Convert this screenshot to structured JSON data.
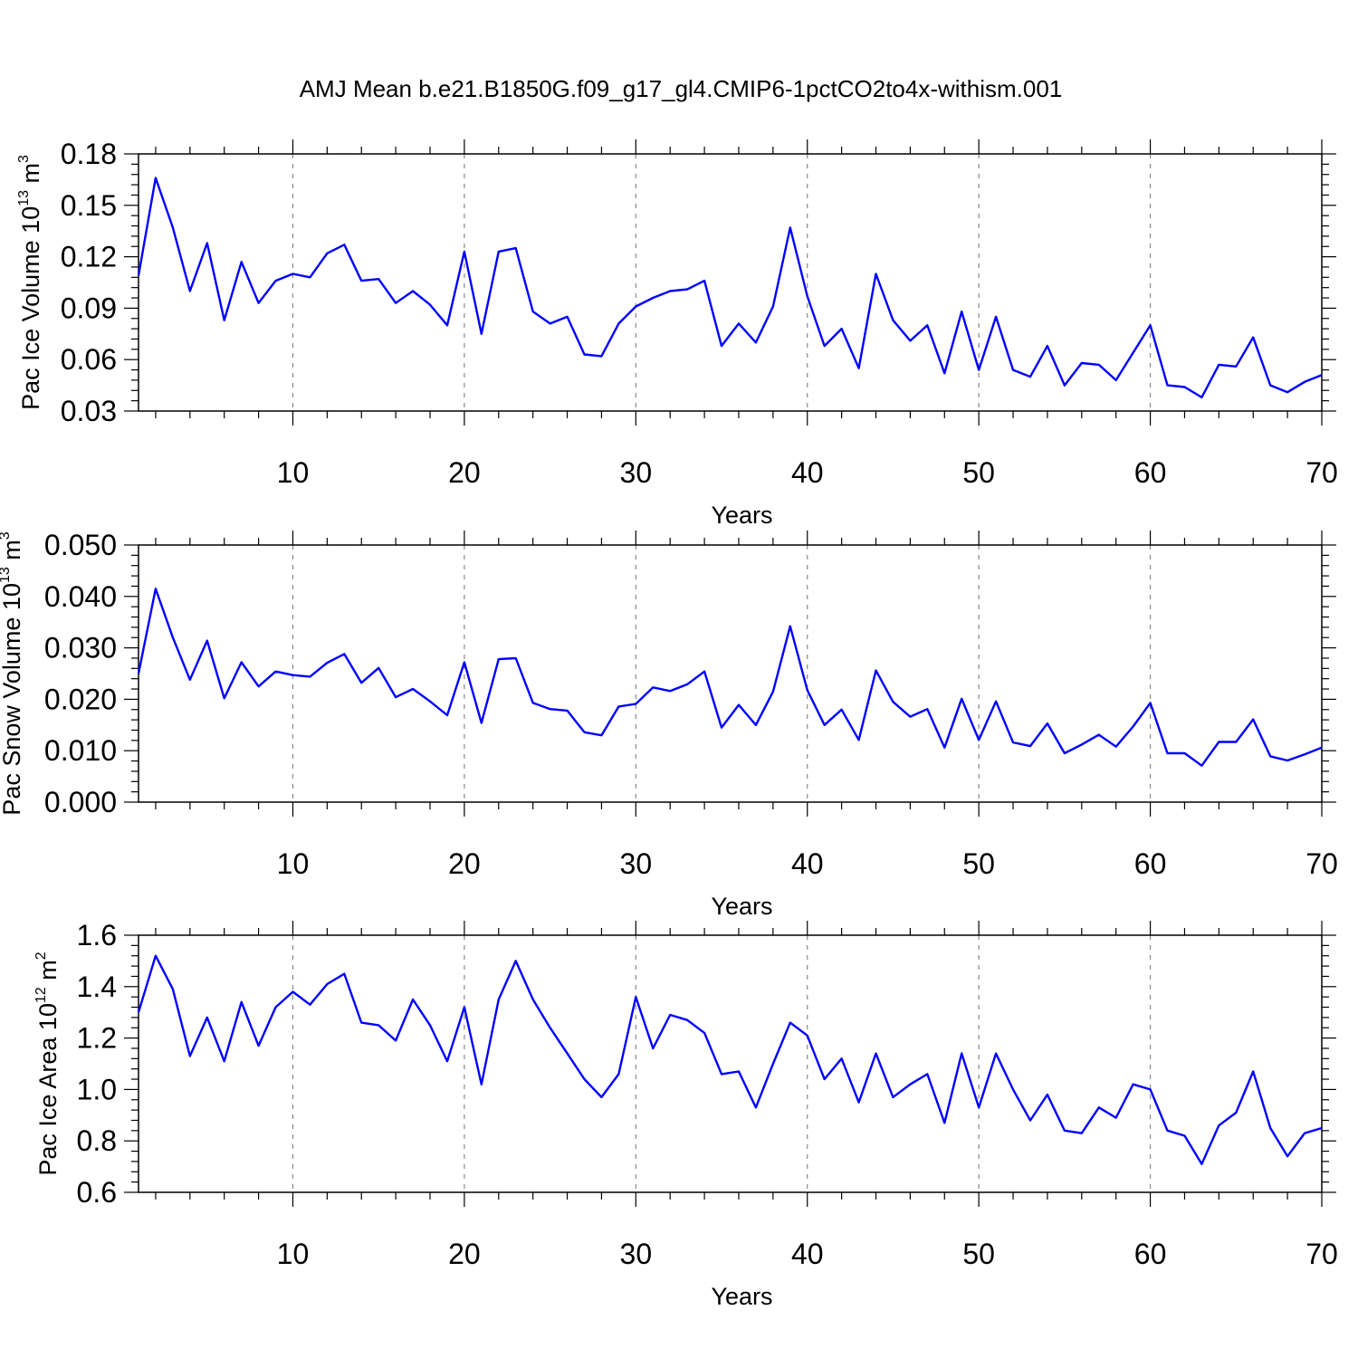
{
  "title": "AMJ Mean b.e21.B1850G.f09_g17_gl4.CMIP6-1pctCO2to4x-withism.001",
  "colors": {
    "line": "#0000ff",
    "axis": "#000000",
    "grid": "#888888"
  },
  "chart_data": [
    {
      "type": "line",
      "xlabel": "Years",
      "ylabel_text": "Pac Ice Volume 10",
      "ylabel_exp": "13",
      "ylabel_unit": " m",
      "ylabel_unit_exp": "3",
      "xlim": [
        1,
        70
      ],
      "ylim": [
        0.03,
        0.18
      ],
      "xticks": [
        "10",
        "20",
        "30",
        "40",
        "50",
        "60",
        "70"
      ],
      "yticks": [
        "0.03",
        "0.06",
        "0.09",
        "0.12",
        "0.15",
        "0.18"
      ],
      "x": [
        1,
        2,
        3,
        4,
        5,
        6,
        7,
        8,
        9,
        10,
        11,
        12,
        13,
        14,
        15,
        16,
        17,
        18,
        19,
        20,
        21,
        22,
        23,
        24,
        25,
        26,
        27,
        28,
        29,
        30,
        31,
        32,
        33,
        34,
        35,
        36,
        37,
        38,
        39,
        40,
        41,
        42,
        43,
        44,
        45,
        46,
        47,
        48,
        49,
        50,
        51,
        52,
        53,
        54,
        55,
        56,
        57,
        58,
        59,
        60,
        61,
        62,
        63,
        64,
        65,
        66,
        67,
        68,
        69,
        70
      ],
      "values": [
        0.109,
        0.166,
        0.137,
        0.1,
        0.128,
        0.083,
        0.117,
        0.093,
        0.106,
        0.11,
        0.108,
        0.122,
        0.127,
        0.106,
        0.107,
        0.093,
        0.1,
        0.092,
        0.08,
        0.123,
        0.075,
        0.123,
        0.125,
        0.088,
        0.081,
        0.085,
        0.063,
        0.062,
        0.081,
        0.091,
        0.096,
        0.1,
        0.101,
        0.106,
        0.068,
        0.081,
        0.07,
        0.091,
        0.137,
        0.097,
        0.068,
        0.078,
        0.055,
        0.11,
        0.083,
        0.071,
        0.08,
        0.052,
        0.088,
        0.054,
        0.085,
        0.054,
        0.05,
        0.068,
        0.045,
        0.058,
        0.057,
        0.048,
        0.064,
        0.08,
        0.045,
        0.044,
        0.038,
        0.057,
        0.056,
        0.073,
        0.045,
        0.041,
        0.047,
        0.051
      ]
    },
    {
      "type": "line",
      "xlabel": "Years",
      "ylabel_text": "Pac Snow Volume 10",
      "ylabel_exp": "13",
      "ylabel_unit": " m",
      "ylabel_unit_exp": "3",
      "xlim": [
        1,
        70
      ],
      "ylim": [
        0.0,
        0.05
      ],
      "xticks": [
        "10",
        "20",
        "30",
        "40",
        "50",
        "60",
        "70"
      ],
      "yticks": [
        "0.000",
        "0.010",
        "0.020",
        "0.030",
        "0.040",
        "0.050"
      ],
      "x": [
        1,
        2,
        3,
        4,
        5,
        6,
        7,
        8,
        9,
        10,
        11,
        12,
        13,
        14,
        15,
        16,
        17,
        18,
        19,
        20,
        21,
        22,
        23,
        24,
        25,
        26,
        27,
        28,
        29,
        30,
        31,
        32,
        33,
        34,
        35,
        36,
        37,
        38,
        39,
        40,
        41,
        42,
        43,
        44,
        45,
        46,
        47,
        48,
        49,
        50,
        51,
        52,
        53,
        54,
        55,
        56,
        57,
        58,
        59,
        60,
        61,
        62,
        63,
        64,
        65,
        66,
        67,
        68,
        69,
        70
      ],
      "values": [
        0.025,
        0.0415,
        0.032,
        0.0238,
        0.0314,
        0.0202,
        0.0272,
        0.0225,
        0.0254,
        0.0247,
        0.0244,
        0.0271,
        0.0288,
        0.0232,
        0.0261,
        0.0204,
        0.022,
        0.0196,
        0.0169,
        0.0272,
        0.0154,
        0.0278,
        0.028,
        0.0193,
        0.0181,
        0.0178,
        0.0136,
        0.013,
        0.0186,
        0.0191,
        0.0223,
        0.0216,
        0.0229,
        0.0254,
        0.0145,
        0.0189,
        0.015,
        0.0215,
        0.0342,
        0.0218,
        0.015,
        0.018,
        0.0121,
        0.0256,
        0.0195,
        0.0166,
        0.0181,
        0.0106,
        0.0201,
        0.0121,
        0.0196,
        0.0116,
        0.0109,
        0.0153,
        0.0095,
        0.0112,
        0.0131,
        0.0108,
        0.0147,
        0.0193,
        0.0095,
        0.0095,
        0.0071,
        0.0117,
        0.0117,
        0.0161,
        0.0089,
        0.0081,
        0.0093,
        0.0106
      ]
    },
    {
      "type": "line",
      "xlabel": "Years",
      "ylabel_text": "Pac Ice Area 10",
      "ylabel_exp": "12",
      "ylabel_unit": " m",
      "ylabel_unit_exp": "2",
      "xlim": [
        1,
        70
      ],
      "ylim": [
        0.6,
        1.6
      ],
      "xticks": [
        "10",
        "20",
        "30",
        "40",
        "50",
        "60",
        "70"
      ],
      "yticks": [
        "0.6",
        "0.8",
        "1.0",
        "1.2",
        "1.4",
        "1.6"
      ],
      "x": [
        1,
        2,
        3,
        4,
        5,
        6,
        7,
        8,
        9,
        10,
        11,
        12,
        13,
        14,
        15,
        16,
        17,
        18,
        19,
        20,
        21,
        22,
        23,
        24,
        25,
        26,
        27,
        28,
        29,
        30,
        31,
        32,
        33,
        34,
        35,
        36,
        37,
        38,
        39,
        40,
        41,
        42,
        43,
        44,
        45,
        46,
        47,
        48,
        49,
        50,
        51,
        52,
        53,
        54,
        55,
        56,
        57,
        58,
        59,
        60,
        61,
        62,
        63,
        64,
        65,
        66,
        67,
        68,
        69,
        70
      ],
      "values": [
        1.3,
        1.52,
        1.39,
        1.13,
        1.28,
        1.11,
        1.34,
        1.17,
        1.32,
        1.38,
        1.33,
        1.41,
        1.45,
        1.26,
        1.25,
        1.19,
        1.35,
        1.25,
        1.11,
        1.32,
        1.02,
        1.35,
        1.5,
        1.35,
        1.24,
        1.14,
        1.04,
        0.97,
        1.06,
        1.36,
        1.16,
        1.29,
        1.27,
        1.22,
        1.06,
        1.07,
        0.93,
        1.1,
        1.26,
        1.21,
        1.04,
        1.12,
        0.95,
        1.14,
        0.97,
        1.02,
        1.06,
        0.87,
        1.14,
        0.93,
        1.14,
        1.0,
        0.88,
        0.98,
        0.84,
        0.83,
        0.93,
        0.89,
        1.02,
        1.0,
        0.84,
        0.82,
        0.71,
        0.86,
        0.91,
        1.07,
        0.85,
        0.74,
        0.83,
        0.85
      ]
    }
  ]
}
